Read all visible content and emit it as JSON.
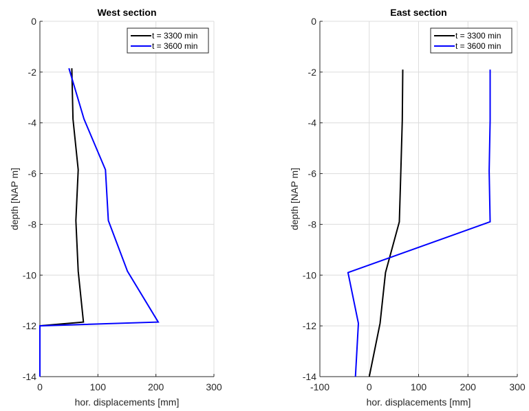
{
  "chart_data": [
    {
      "type": "line",
      "title": "West section",
      "xlabel": "hor. displacements [mm]",
      "ylabel": "depth  [NAP  m]",
      "xlim": [
        0,
        300
      ],
      "ylim": [
        -14,
        0
      ],
      "xticks": [
        0,
        100,
        200,
        300
      ],
      "yticks": [
        0,
        -2,
        -4,
        -6,
        -8,
        -10,
        -12,
        -14
      ],
      "grid": true,
      "legend": "top-right",
      "series": [
        {
          "name": "t = 3300 min",
          "color": "#000000",
          "x": [
            55,
            57,
            66,
            62,
            66,
            75,
            0,
            0
          ],
          "y": [
            -1.85,
            -3.85,
            -5.85,
            -7.85,
            -9.85,
            -11.85,
            -12,
            -14
          ]
        },
        {
          "name": "t = 3600 min",
          "color": "#0000ff",
          "x": [
            50,
            76,
            113,
            118,
            151,
            204,
            0,
            0
          ],
          "y": [
            -1.85,
            -3.85,
            -5.85,
            -7.85,
            -9.85,
            -11.85,
            -12,
            -14
          ]
        }
      ]
    },
    {
      "type": "line",
      "title": "East section",
      "xlabel": "hor. displacements [mm]",
      "ylabel": "depth  [NAP  m]",
      "xlim": [
        -100,
        300
      ],
      "ylim": [
        -14,
        0
      ],
      "xticks": [
        -100,
        0,
        100,
        200,
        300
      ],
      "yticks": [
        0,
        -2,
        -4,
        -6,
        -8,
        -10,
        -12,
        -14
      ],
      "grid": true,
      "legend": "top-right",
      "series": [
        {
          "name": "t = 3300 min",
          "color": "#000000",
          "x": [
            68,
            67,
            64,
            61,
            33,
            22,
            0
          ],
          "y": [
            -1.9,
            -3.9,
            -5.9,
            -7.9,
            -9.9,
            -11.9,
            -14
          ]
        },
        {
          "name": "t = 3600 min",
          "color": "#0000ff",
          "x": [
            245,
            245,
            243,
            245,
            -43,
            -22,
            -28
          ],
          "y": [
            -1.9,
            -3.9,
            -5.9,
            -7.9,
            -9.9,
            -11.9,
            -14
          ]
        }
      ]
    }
  ]
}
